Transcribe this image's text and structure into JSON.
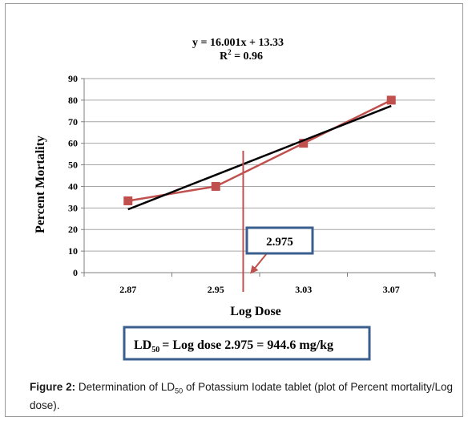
{
  "chart_data": {
    "type": "line",
    "equation": "y = 16.001x + 13.33",
    "r2_prefix": "R",
    "r2_sup": "2",
    "r2_value": " = 0.96",
    "ylabel": "Percent Mortality",
    "xlabel": "Log Dose",
    "categories": [
      "2.87",
      "2.95",
      "3.03",
      "3.07"
    ],
    "ylim": [
      0,
      90
    ],
    "yticks": [
      0,
      10,
      20,
      30,
      40,
      50,
      60,
      70,
      80,
      90
    ],
    "grid": true,
    "series": [
      {
        "values": [
          33.3,
          40,
          60,
          80
        ],
        "color": "#c0504d",
        "marker": "square"
      }
    ],
    "trendline": {
      "slope": 16.001,
      "intercept": 13.33,
      "color": "#000000"
    },
    "marker_line": {
      "x": 2.975,
      "color": "#c0504d"
    },
    "annotation_box": {
      "label": "2.975",
      "border_color": "#3b5f8c"
    },
    "result_box": {
      "prefix": "LD",
      "sub": "50",
      "text": "= Log dose 2.975 = 944.6 mg/kg",
      "border_color": "#3b5f8c"
    }
  },
  "caption": {
    "label": "Figure 2:",
    "text_before": " Determination of LD",
    "sub": "50",
    "text_after": " of Potassium Iodate tablet (plot of Percent mortality/Log dose)."
  }
}
